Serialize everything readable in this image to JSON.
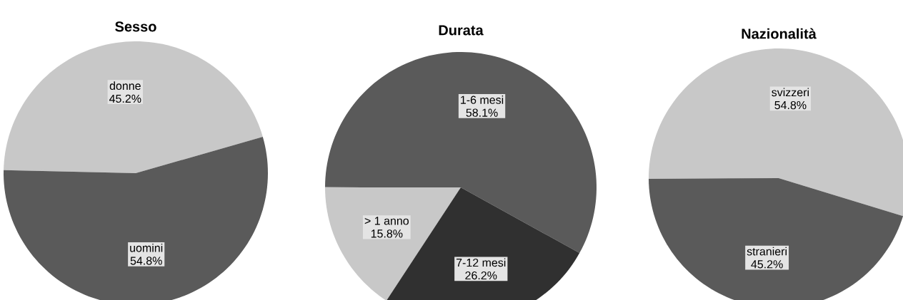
{
  "chart_data": [
    {
      "type": "pie",
      "title": "Sesso",
      "categories": [
        "donne",
        "uomini"
      ],
      "values": [
        45.2,
        54.8
      ],
      "colors": [
        "#c8c8c8",
        "#5a5a5a"
      ],
      "value_labels": [
        "45.2%",
        "54.8%"
      ]
    },
    {
      "type": "pie",
      "title": "Durata",
      "categories": [
        "1-6 mesi",
        "> 1 anno",
        "7-12 mesi"
      ],
      "values": [
        58.1,
        15.8,
        26.2
      ],
      "colors": [
        "#5a5a5a",
        "#c8c8c8",
        "#303030"
      ],
      "value_labels": [
        "58.1%",
        "15.8%",
        "26.2%"
      ]
    },
    {
      "type": "pie",
      "title": "Nazionalità",
      "categories": [
        "svizzeri",
        "stranieri"
      ],
      "values": [
        54.8,
        45.2
      ],
      "colors": [
        "#c8c8c8",
        "#5a5a5a"
      ],
      "value_labels": [
        "54.8%",
        "45.2%"
      ]
    }
  ]
}
